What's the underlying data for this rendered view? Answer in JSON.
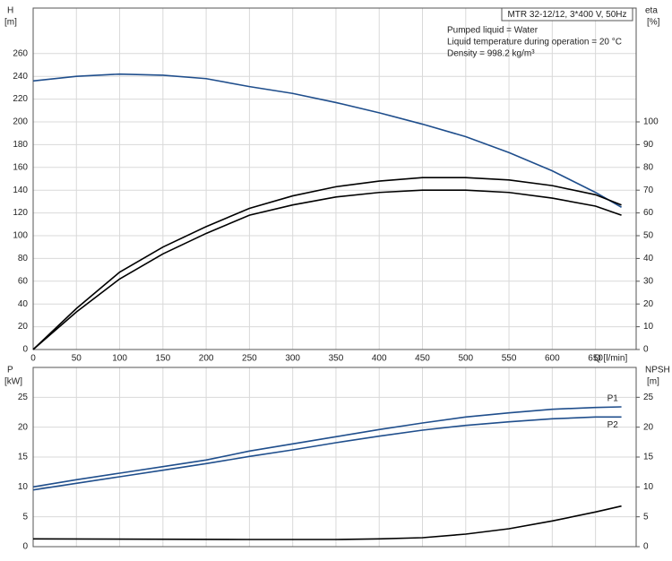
{
  "chart_data": [
    {
      "type": "line",
      "title": "MTR 32-12/12, 3*400 V, 50Hz",
      "annotations": [
        "Pumped liquid = Water",
        "Liquid temperature during operation = 20 °C",
        "Density = 998.2 kg/m³"
      ],
      "ylabel": "H",
      "yunit": "[m]",
      "y2label": "eta",
      "y2unit": "[%]",
      "xlabel": "Q [l/min]",
      "xlim": [
        0,
        697
      ],
      "xticks": [
        0,
        50,
        100,
        150,
        200,
        250,
        300,
        350,
        400,
        450,
        500,
        550,
        600,
        650
      ],
      "ylim": [
        0,
        300
      ],
      "yticks": [
        0,
        20,
        40,
        60,
        80,
        100,
        120,
        140,
        160,
        180,
        200,
        220,
        240,
        260
      ],
      "y2lim": [
        0,
        150
      ],
      "y2ticks": [
        0,
        10,
        20,
        30,
        40,
        50,
        60,
        70,
        80,
        90,
        100
      ],
      "grid": true,
      "series": [
        {
          "color": "#1f4e8c",
          "x": [
            0,
            50,
            100,
            150,
            200,
            250,
            300,
            350,
            400,
            450,
            500,
            550,
            600,
            650,
            680
          ],
          "values": [
            236,
            240,
            242,
            241,
            238,
            231,
            225,
            217,
            208,
            198,
            187,
            173,
            157,
            138,
            125
          ]
        },
        {
          "color": "#000000",
          "axis": "y2",
          "x": [
            0,
            50,
            100,
            150,
            200,
            250,
            300,
            350,
            400,
            450,
            500,
            550,
            600,
            650,
            680
          ],
          "values": [
            0,
            18,
            34,
            45,
            54,
            62,
            67.5,
            71.5,
            74,
            75.5,
            75.5,
            74.5,
            72,
            68,
            63.5
          ]
        },
        {
          "color": "#000000",
          "axis": "y2",
          "x": [
            0,
            50,
            100,
            150,
            200,
            250,
            300,
            350,
            400,
            450,
            500,
            550,
            600,
            650,
            680
          ],
          "values": [
            0,
            16.5,
            31,
            42,
            51,
            59,
            63.5,
            67,
            69,
            70,
            70,
            69,
            66.5,
            63,
            59
          ]
        }
      ]
    },
    {
      "type": "line",
      "ylabel": "P",
      "yunit": "[kW]",
      "y2label": "NPSH",
      "y2unit": "[m]",
      "xlim": [
        0,
        697
      ],
      "xticks": [
        0,
        50,
        100,
        150,
        200,
        250,
        300,
        350,
        400,
        450,
        500,
        550,
        600,
        650
      ],
      "ylim": [
        0,
        30
      ],
      "yticks": [
        0,
        5,
        10,
        15,
        20,
        25
      ],
      "y2lim": [
        0,
        30
      ],
      "y2ticks": [
        0,
        5,
        10,
        15,
        20,
        25
      ],
      "grid": true,
      "series": [
        {
          "name": "P1",
          "color": "#1f4e8c",
          "x": [
            0,
            50,
            100,
            150,
            200,
            250,
            300,
            350,
            400,
            450,
            500,
            550,
            600,
            650,
            680
          ],
          "values": [
            10,
            11.2,
            12.3,
            13.4,
            14.5,
            16.0,
            17.2,
            18.4,
            19.6,
            20.7,
            21.7,
            22.4,
            23.0,
            23.3,
            23.4
          ]
        },
        {
          "name": "P2",
          "color": "#1f4e8c",
          "x": [
            0,
            50,
            100,
            150,
            200,
            250,
            300,
            350,
            400,
            450,
            500,
            550,
            600,
            650,
            680
          ],
          "values": [
            9.5,
            10.6,
            11.7,
            12.8,
            13.9,
            15.1,
            16.2,
            17.4,
            18.5,
            19.5,
            20.3,
            20.9,
            21.4,
            21.7,
            21.7
          ]
        },
        {
          "color": "#000000",
          "axis": "y2",
          "x": [
            0,
            250,
            300,
            350,
            400,
            450,
            500,
            550,
            600,
            650,
            680
          ],
          "values": [
            1.3,
            1.2,
            1.2,
            1.2,
            1.3,
            1.5,
            2.1,
            3.0,
            4.3,
            5.8,
            6.8
          ]
        }
      ]
    }
  ]
}
